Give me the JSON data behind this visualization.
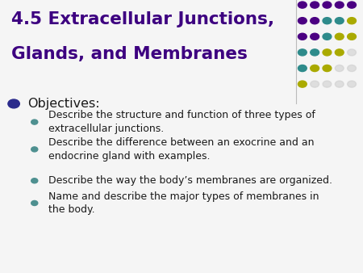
{
  "title_line1": "4.5 Extracellular Junctions,",
  "title_line2": "Glands, and Membranes",
  "title_color": "#3D0080",
  "title_fontsize": 15.5,
  "background_color": "#F5F5F5",
  "bullet_color": "#2B2B8C",
  "sub_bullet_color": "#4E9090",
  "text_color": "#1A1A1A",
  "main_bullet": "Objectives:",
  "main_bullet_fontsize": 11.5,
  "sub_bullet_fontsize": 9.0,
  "sub_bullets": [
    "Describe the structure and function of three types of\nextracellular junctions.",
    "Describe the difference between an exocrine and an\nendocrine gland with examples.",
    "Describe the way the body’s membranes are organized.",
    "Name and describe the major types of membranes in\nthe body."
  ],
  "dot_grid": {
    "colors": [
      [
        "#4B0082",
        "#4B0082",
        "#4B0082",
        "#4B0082",
        "#4B0082"
      ],
      [
        "#4B0082",
        "#4B0082",
        "#2E8B8B",
        "#2E8B8B",
        "#AAAA00"
      ],
      [
        "#4B0082",
        "#4B0082",
        "#2E8B8B",
        "#AAAA00",
        "#AAAA00"
      ],
      [
        "#2E8B8B",
        "#2E8B8B",
        "#AAAA00",
        "#AAAA00",
        "#CCCCCC"
      ],
      [
        "#2E8B8B",
        "#AAAA00",
        "#AAAA00",
        "#CCCCCC",
        "#CCCCCC"
      ],
      [
        "#AAAA00",
        "#CCCCCC",
        "#CCCCCC",
        "#CCCCCC",
        "#CCCCCC"
      ]
    ],
    "rows": 6,
    "cols": 5
  }
}
